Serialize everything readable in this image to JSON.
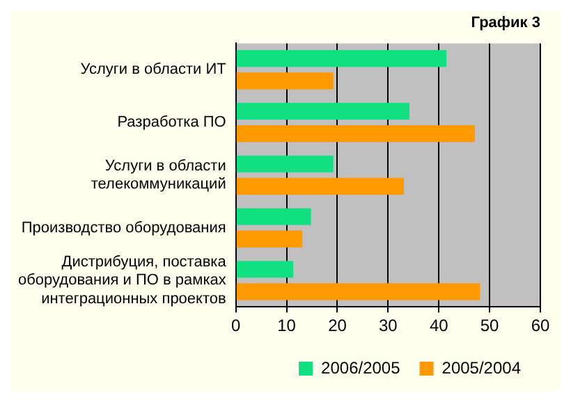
{
  "chart_data": {
    "type": "bar",
    "orientation": "horizontal",
    "title": "График 3",
    "categories": [
      "Услуги в области ИТ",
      "Разработка ПО",
      "Услуги в области телекоммуникаций",
      "Производство оборудования",
      "Дистрибуция, поставка оборудования и ПО в рамках интеграционных проектов"
    ],
    "series": [
      {
        "name": "2006/2005",
        "color": "#10e080",
        "values": [
          41.5,
          34.2,
          19.2,
          14.8,
          11.3
        ]
      },
      {
        "name": "2005/2004",
        "color": "#ff9900",
        "values": [
          19.2,
          47.1,
          33.1,
          13.1,
          48.1
        ]
      }
    ],
    "xlim": [
      0,
      60
    ],
    "xticks": [
      0,
      10,
      20,
      30,
      40,
      50,
      60
    ],
    "grid": "x",
    "legend": "bottom"
  }
}
